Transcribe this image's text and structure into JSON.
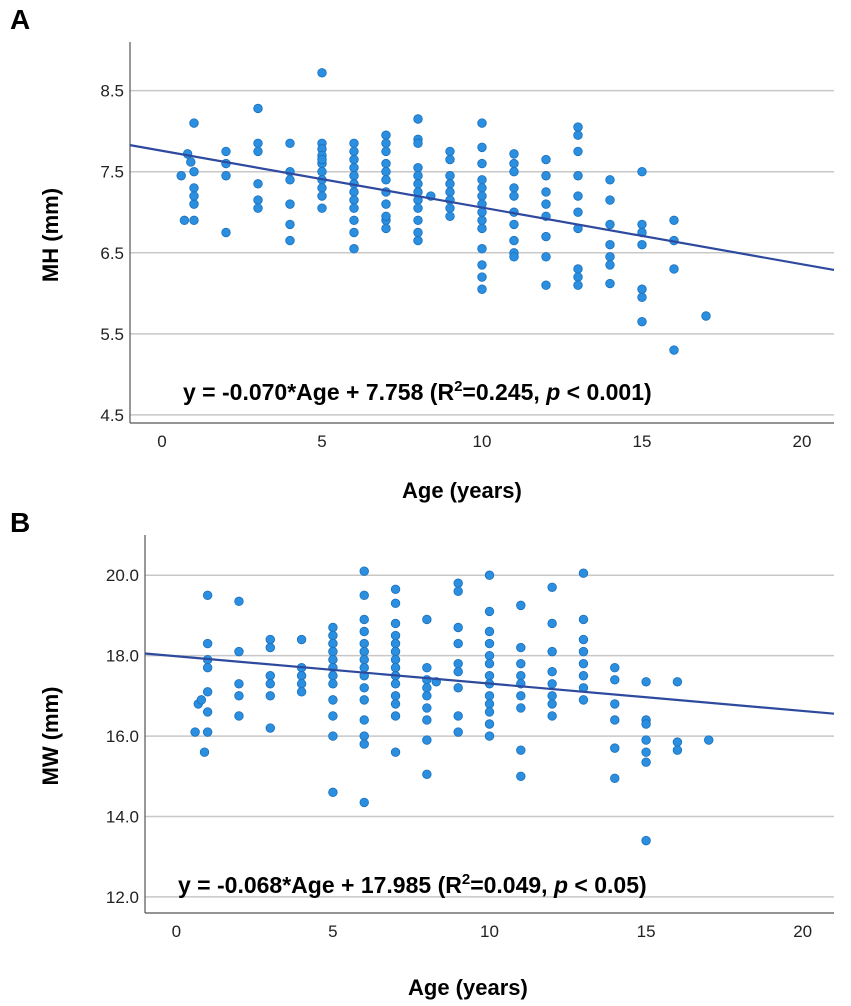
{
  "chart_data": [
    {
      "panel_label": "A",
      "type": "scatter",
      "xlabel": "Age (years)",
      "ylabel": "MH (mm)",
      "xlim": [
        -1,
        21
      ],
      "ylim": [
        4.4,
        9.1
      ],
      "xticks": [
        0,
        5,
        10,
        15,
        20
      ],
      "yticks": [
        4.5,
        5.5,
        6.5,
        7.5,
        8.5
      ],
      "ytick_labels": [
        "4.5",
        "5.5",
        "6.5",
        "7.5",
        "8.5"
      ],
      "grid": "horizontal",
      "regression": {
        "slope": -0.07,
        "intercept": 7.758
      },
      "equation": {
        "pre": "y = -0.070*Age + 7.758 (R",
        "sup": "2",
        "mid": "=0.245, ",
        "italic": "p",
        "post": " < 0.001)"
      },
      "points": [
        [
          0.6,
          7.45
        ],
        [
          0.7,
          6.9
        ],
        [
          0.8,
          7.72
        ],
        [
          0.9,
          7.62
        ],
        [
          1,
          8.1
        ],
        [
          1,
          7.5
        ],
        [
          1,
          7.3
        ],
        [
          1,
          7.1
        ],
        [
          1,
          6.9
        ],
        [
          1,
          7.2
        ],
        [
          2,
          7.75
        ],
        [
          2,
          7.6
        ],
        [
          2,
          7.45
        ],
        [
          2,
          6.75
        ],
        [
          3,
          8.28
        ],
        [
          3,
          7.85
        ],
        [
          3,
          7.75
        ],
        [
          3,
          7.35
        ],
        [
          3,
          7.15
        ],
        [
          3,
          7.05
        ],
        [
          4,
          7.85
        ],
        [
          4,
          7.5
        ],
        [
          4,
          7.4
        ],
        [
          4,
          7.1
        ],
        [
          4,
          6.85
        ],
        [
          4,
          6.65
        ],
        [
          5,
          8.72
        ],
        [
          5,
          7.85
        ],
        [
          5,
          7.78
        ],
        [
          5,
          7.7
        ],
        [
          5,
          7.6
        ],
        [
          5,
          7.5
        ],
        [
          5,
          7.4
        ],
        [
          5,
          7.3
        ],
        [
          5,
          7.2
        ],
        [
          5,
          7.05
        ],
        [
          5,
          7.65
        ],
        [
          6,
          7.85
        ],
        [
          6,
          7.75
        ],
        [
          6,
          7.65
        ],
        [
          6,
          7.55
        ],
        [
          6,
          7.45
        ],
        [
          6,
          7.35
        ],
        [
          6,
          7.25
        ],
        [
          6,
          7.15
        ],
        [
          6,
          7.05
        ],
        [
          6,
          6.9
        ],
        [
          6,
          6.75
        ],
        [
          6,
          6.55
        ],
        [
          7,
          7.95
        ],
        [
          7,
          7.85
        ],
        [
          7,
          7.75
        ],
        [
          7,
          7.6
        ],
        [
          7,
          7.5
        ],
        [
          7,
          7.4
        ],
        [
          7,
          7.25
        ],
        [
          7,
          7.1
        ],
        [
          7,
          6.9
        ],
        [
          7,
          6.8
        ],
        [
          7,
          6.95
        ],
        [
          8,
          8.15
        ],
        [
          8,
          7.9
        ],
        [
          8,
          7.85
        ],
        [
          8,
          7.55
        ],
        [
          8,
          7.45
        ],
        [
          8,
          7.35
        ],
        [
          8,
          7.25
        ],
        [
          8,
          7.15
        ],
        [
          8,
          7.05
        ],
        [
          8,
          6.9
        ],
        [
          8,
          6.75
        ],
        [
          8,
          6.65
        ],
        [
          8.4,
          7.2
        ],
        [
          9,
          7.75
        ],
        [
          9,
          7.65
        ],
        [
          9,
          7.45
        ],
        [
          9,
          7.35
        ],
        [
          9,
          7.25
        ],
        [
          9,
          7.15
        ],
        [
          9,
          7.05
        ],
        [
          9,
          6.95
        ],
        [
          10,
          8.1
        ],
        [
          10,
          7.8
        ],
        [
          10,
          7.6
        ],
        [
          10,
          7.4
        ],
        [
          10,
          7.3
        ],
        [
          10,
          7.2
        ],
        [
          10,
          7.1
        ],
        [
          10,
          7.0
        ],
        [
          10,
          6.9
        ],
        [
          10,
          6.8
        ],
        [
          10,
          6.55
        ],
        [
          10,
          6.35
        ],
        [
          10,
          6.2
        ],
        [
          10,
          6.05
        ],
        [
          11,
          7.72
        ],
        [
          11,
          7.6
        ],
        [
          11,
          7.5
        ],
        [
          11,
          7.3
        ],
        [
          11,
          7.2
        ],
        [
          11,
          7.0
        ],
        [
          11,
          6.85
        ],
        [
          11,
          6.65
        ],
        [
          11,
          6.5
        ],
        [
          11,
          6.45
        ],
        [
          12,
          7.65
        ],
        [
          12,
          7.45
        ],
        [
          12,
          7.25
        ],
        [
          12,
          7.1
        ],
        [
          12,
          6.95
        ],
        [
          12,
          6.7
        ],
        [
          12,
          6.45
        ],
        [
          12,
          6.1
        ],
        [
          13,
          8.05
        ],
        [
          13,
          7.95
        ],
        [
          13,
          7.75
        ],
        [
          13,
          7.45
        ],
        [
          13,
          7.2
        ],
        [
          13,
          7.0
        ],
        [
          13,
          6.8
        ],
        [
          13,
          6.3
        ],
        [
          13,
          6.2
        ],
        [
          13,
          6.1
        ],
        [
          14,
          7.4
        ],
        [
          14,
          7.15
        ],
        [
          14,
          6.85
        ],
        [
          14,
          6.6
        ],
        [
          14,
          6.45
        ],
        [
          14,
          6.35
        ],
        [
          14,
          6.12
        ],
        [
          15,
          7.5
        ],
        [
          15,
          6.85
        ],
        [
          15,
          6.75
        ],
        [
          15,
          6.6
        ],
        [
          15,
          6.05
        ],
        [
          15,
          5.95
        ],
        [
          15,
          5.65
        ],
        [
          16,
          6.9
        ],
        [
          16,
          6.65
        ],
        [
          16,
          6.3
        ],
        [
          16,
          5.3
        ],
        [
          17,
          5.72
        ]
      ]
    },
    {
      "panel_label": "B",
      "type": "scatter",
      "xlabel": "Age (years)",
      "ylabel": "MW (mm)",
      "xlim": [
        -1,
        21
      ],
      "ylim": [
        11.6,
        21.0
      ],
      "xticks": [
        0,
        5,
        10,
        15,
        20
      ],
      "yticks": [
        12,
        14,
        16,
        18,
        20
      ],
      "ytick_labels": [
        "12.0",
        "14.0",
        "16.0",
        "18.0",
        "20.0"
      ],
      "grid": "horizontal",
      "regression": {
        "slope": -0.068,
        "intercept": 17.985
      },
      "equation": {
        "pre": "y = -0.068*Age + 17.985 (R",
        "sup": "2",
        "mid": "=0.049, ",
        "italic": "p",
        "post": " < 0.05)"
      },
      "points": [
        [
          0.6,
          16.1
        ],
        [
          0.7,
          16.8
        ],
        [
          0.8,
          16.9
        ],
        [
          0.9,
          15.6
        ],
        [
          1,
          19.5
        ],
        [
          1,
          18.3
        ],
        [
          1,
          17.9
        ],
        [
          1,
          17.7
        ],
        [
          1,
          17.1
        ],
        [
          1,
          16.6
        ],
        [
          1,
          16.1
        ],
        [
          2,
          19.35
        ],
        [
          2,
          18.1
        ],
        [
          2,
          17.3
        ],
        [
          2,
          17.0
        ],
        [
          2,
          16.5
        ],
        [
          3,
          18.4
        ],
        [
          3,
          18.2
        ],
        [
          3,
          17.5
        ],
        [
          3,
          17.3
        ],
        [
          3,
          17.0
        ],
        [
          3,
          16.2
        ],
        [
          4,
          18.4
        ],
        [
          4,
          17.7
        ],
        [
          4,
          17.5
        ],
        [
          4,
          17.3
        ],
        [
          4,
          17.1
        ],
        [
          5,
          18.7
        ],
        [
          5,
          18.5
        ],
        [
          5,
          18.3
        ],
        [
          5,
          18.1
        ],
        [
          5,
          17.9
        ],
        [
          5,
          17.7
        ],
        [
          5,
          17.5
        ],
        [
          5,
          17.3
        ],
        [
          5,
          16.9
        ],
        [
          5,
          16.5
        ],
        [
          5,
          16.0
        ],
        [
          5,
          14.6
        ],
        [
          6,
          20.1
        ],
        [
          6,
          19.5
        ],
        [
          6,
          18.9
        ],
        [
          6,
          18.6
        ],
        [
          6,
          18.3
        ],
        [
          6,
          18.1
        ],
        [
          6,
          17.9
        ],
        [
          6,
          17.7
        ],
        [
          6,
          17.5
        ],
        [
          6,
          17.2
        ],
        [
          6,
          16.9
        ],
        [
          6,
          16.4
        ],
        [
          6,
          16.0
        ],
        [
          6,
          15.8
        ],
        [
          6,
          14.35
        ],
        [
          7,
          19.65
        ],
        [
          7,
          19.3
        ],
        [
          7,
          18.8
        ],
        [
          7,
          18.5
        ],
        [
          7,
          18.3
        ],
        [
          7,
          18.1
        ],
        [
          7,
          17.9
        ],
        [
          7,
          17.7
        ],
        [
          7,
          17.5
        ],
        [
          7,
          17.3
        ],
        [
          7,
          17.0
        ],
        [
          7,
          16.8
        ],
        [
          7,
          16.5
        ],
        [
          7,
          15.6
        ],
        [
          8,
          18.9
        ],
        [
          8,
          17.7
        ],
        [
          8,
          17.4
        ],
        [
          8,
          17.2
        ],
        [
          8,
          17.0
        ],
        [
          8,
          16.7
        ],
        [
          8,
          16.4
        ],
        [
          8,
          15.9
        ],
        [
          8,
          15.05
        ],
        [
          8.3,
          17.35
        ],
        [
          9,
          19.8
        ],
        [
          9,
          19.6
        ],
        [
          9,
          18.7
        ],
        [
          9,
          18.3
        ],
        [
          9,
          17.8
        ],
        [
          9,
          17.6
        ],
        [
          9,
          17.2
        ],
        [
          9,
          16.5
        ],
        [
          9,
          16.1
        ],
        [
          10,
          20.0
        ],
        [
          10,
          19.1
        ],
        [
          10,
          18.6
        ],
        [
          10,
          18.3
        ],
        [
          10,
          18.0
        ],
        [
          10,
          17.8
        ],
        [
          10,
          17.5
        ],
        [
          10,
          17.3
        ],
        [
          10,
          17.0
        ],
        [
          10,
          16.8
        ],
        [
          10,
          16.6
        ],
        [
          10,
          16.3
        ],
        [
          10,
          16.0
        ],
        [
          11,
          19.25
        ],
        [
          11,
          18.2
        ],
        [
          11,
          17.8
        ],
        [
          11,
          17.5
        ],
        [
          11,
          17.3
        ],
        [
          11,
          17.0
        ],
        [
          11,
          16.7
        ],
        [
          11,
          15.65
        ],
        [
          11,
          15.0
        ],
        [
          12,
          19.7
        ],
        [
          12,
          18.8
        ],
        [
          12,
          18.1
        ],
        [
          12,
          17.6
        ],
        [
          12,
          17.3
        ],
        [
          12,
          17.0
        ],
        [
          12,
          16.8
        ],
        [
          12,
          16.5
        ],
        [
          13,
          20.05
        ],
        [
          13,
          18.9
        ],
        [
          13,
          18.4
        ],
        [
          13,
          18.1
        ],
        [
          13,
          17.8
        ],
        [
          13,
          17.5
        ],
        [
          13,
          17.2
        ],
        [
          13,
          16.9
        ],
        [
          14,
          17.7
        ],
        [
          14,
          17.4
        ],
        [
          14,
          16.8
        ],
        [
          14,
          16.4
        ],
        [
          14,
          15.7
        ],
        [
          14,
          14.95
        ],
        [
          15,
          17.35
        ],
        [
          15,
          16.4
        ],
        [
          15,
          16.3
        ],
        [
          15,
          15.9
        ],
        [
          15,
          15.6
        ],
        [
          15,
          15.35
        ],
        [
          15,
          13.4
        ],
        [
          16,
          17.35
        ],
        [
          16,
          15.85
        ],
        [
          16,
          15.65
        ],
        [
          17,
          15.9
        ]
      ]
    }
  ]
}
